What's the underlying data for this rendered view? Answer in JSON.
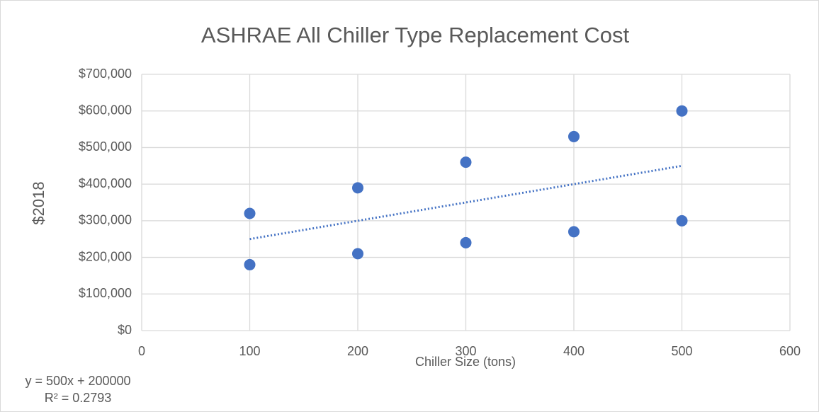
{
  "chart_data": {
    "type": "scatter",
    "title": "ASHRAE All Chiller Type Replacement Cost",
    "x_label": "Chiller Size (tons)",
    "y_label": "$2018",
    "series": [
      {
        "color": "#4472c4",
        "x": [
          100,
          100,
          200,
          200,
          300,
          300,
          400,
          400,
          500,
          500
        ],
        "values": [
          320000,
          180000,
          390000,
          210000,
          460000,
          240000,
          530000,
          270000,
          600000,
          300000
        ]
      }
    ],
    "trendline": {
      "color": "#4472c4",
      "style": "dotted",
      "x": [
        100,
        500
      ],
      "values": [
        250000,
        450000
      ]
    },
    "annotations": [
      "y = 500x + 200000",
      "R² = 0.2793"
    ],
    "xlim": [
      0,
      600
    ],
    "xticks": [
      0,
      100,
      200,
      300,
      400,
      500,
      600
    ],
    "ylim": [
      0,
      700000
    ],
    "yticks": [
      {
        "value": 0,
        "label": "$0"
      },
      {
        "value": 100000,
        "label": "$100,000"
      },
      {
        "value": 200000,
        "label": "$200,000"
      },
      {
        "value": 300000,
        "label": "$300,000"
      },
      {
        "value": 400000,
        "label": "$400,000"
      },
      {
        "value": 500000,
        "label": "$500,000"
      },
      {
        "value": 600000,
        "label": "$600,000"
      },
      {
        "value": 700000,
        "label": "$700,000"
      }
    ],
    "grid": true
  }
}
